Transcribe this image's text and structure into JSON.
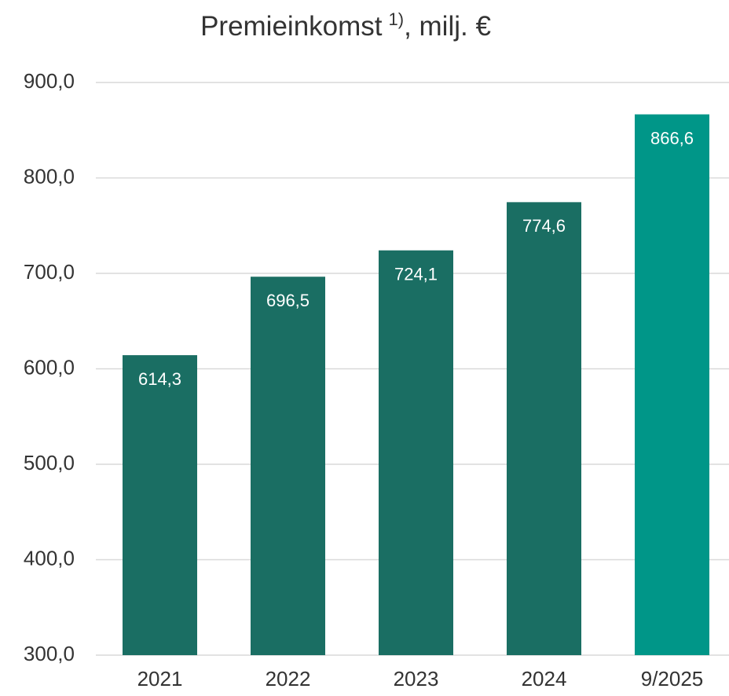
{
  "chart_data": {
    "type": "bar",
    "title": "Premieinkomst",
    "title_note": "1)",
    "title_suffix": ", milj. €",
    "categories": [
      "2021",
      "2022",
      "2023",
      "2024",
      "9/2025"
    ],
    "values": [
      614.3,
      696.5,
      724.1,
      774.6,
      866.6
    ],
    "value_labels": [
      "614,3",
      "696,5",
      "724,1",
      "774,6",
      "866,6"
    ],
    "colors": [
      "#1a6e63",
      "#1a6e63",
      "#1a6e63",
      "#1a6e63",
      "#009688"
    ],
    "ylim": [
      300,
      900
    ],
    "yticks": [
      {
        "value": 300,
        "label": "300,0"
      },
      {
        "value": 400,
        "label": "400,0"
      },
      {
        "value": 500,
        "label": "500,0"
      },
      {
        "value": 600,
        "label": "600,0"
      },
      {
        "value": 700,
        "label": "700,0"
      },
      {
        "value": 800,
        "label": "800,0"
      },
      {
        "value": 900,
        "label": "900,0"
      }
    ],
    "grid": true
  }
}
